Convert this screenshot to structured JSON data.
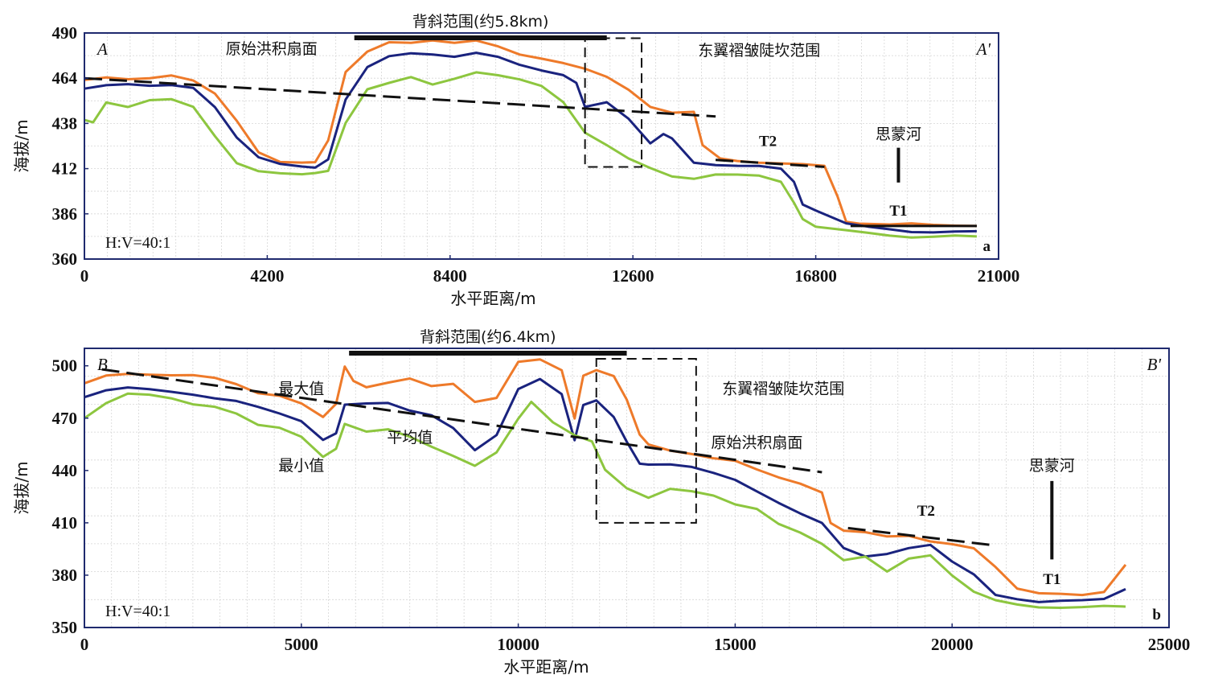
{
  "chart_data": [
    {
      "type": "line",
      "panel_label": "a",
      "title": "",
      "xlabel": "水平距离/m",
      "ylabel": "海拔/m",
      "xlim": [
        0,
        21000
      ],
      "ylim": [
        360,
        490
      ],
      "xticks": [
        0,
        4200,
        8400,
        12600,
        16800,
        21000
      ],
      "yticks": [
        360,
        386,
        412,
        438,
        464,
        490
      ],
      "grid": true,
      "start_label": "A",
      "end_label": "A'",
      "ratio": "H:V=40:1",
      "annotations": {
        "anticline": "背斜范围(约5.8km)",
        "east_wing": "东翼褶皱陡坎范围",
        "fan_surface": "原始洪积扇面",
        "river": "思蒙河",
        "t2": "T2",
        "t1": "T1"
      },
      "anticline_span": [
        6200,
        12000
      ],
      "dashed_box": {
        "x": [
          11500,
          12800
        ],
        "y": [
          413,
          487
        ]
      },
      "fan_line": [
        [
          0,
          464
        ],
        [
          14500,
          442
        ]
      ],
      "t2_line": [
        [
          14500,
          417
        ],
        [
          17000,
          413
        ]
      ],
      "t1_line": [
        [
          17600,
          379
        ],
        [
          20500,
          379
        ]
      ],
      "river_marker": {
        "x": 18700,
        "y": [
          404,
          424
        ]
      },
      "series": [
        {
          "name": "最大值",
          "color": "#ee7a2a",
          "x": [
            0,
            500,
            1000,
            1500,
            2000,
            2500,
            3000,
            3500,
            4000,
            4500,
            5000,
            5300,
            5600,
            6000,
            6500,
            7000,
            7500,
            8000,
            8500,
            9000,
            9500,
            10000,
            10500,
            11000,
            11500,
            12000,
            12500,
            13000,
            13500,
            14000,
            14200,
            14600,
            15000,
            15500,
            16000,
            16500,
            17000,
            17300,
            17500,
            17800,
            18500,
            19000,
            19500,
            20000,
            20500
          ],
          "y": [
            463,
            465,
            464,
            464,
            465,
            462,
            455,
            440,
            422,
            416,
            415,
            415,
            428,
            468,
            480,
            485,
            484,
            485,
            484,
            486,
            483,
            478,
            475,
            472,
            469,
            465,
            458,
            448,
            444,
            444,
            425,
            418,
            417,
            416,
            415,
            414,
            413,
            396,
            382,
            381,
            380,
            380,
            379,
            379,
            379
          ]
        },
        {
          "name": "平均值",
          "color": "#1a237e",
          "x": [
            0,
            500,
            1000,
            1500,
            2000,
            2500,
            3000,
            3500,
            4000,
            4500,
            5000,
            5300,
            5600,
            6000,
            6500,
            7000,
            7500,
            8000,
            8500,
            9000,
            9500,
            10000,
            10500,
            11000,
            11300,
            11500,
            12000,
            12500,
            13000,
            13300,
            13500,
            14000,
            14500,
            15000,
            15500,
            16000,
            16300,
            16500,
            16800,
            17500,
            18000,
            18500,
            19000,
            19500,
            20000,
            20500
          ],
          "y": [
            458,
            460,
            460,
            459,
            460,
            459,
            448,
            430,
            418,
            414,
            413,
            413,
            418,
            452,
            470,
            476,
            478,
            478,
            477,
            479,
            476,
            471,
            468,
            466,
            462,
            448,
            450,
            440,
            426,
            432,
            430,
            416,
            414,
            413,
            413,
            412,
            405,
            392,
            388,
            380,
            378,
            377,
            376,
            376,
            376,
            376
          ]
        },
        {
          "name": "最小值",
          "color": "#8dc63f",
          "x": [
            0,
            200,
            500,
            1000,
            1500,
            2000,
            2500,
            3000,
            3500,
            4000,
            4500,
            5000,
            5300,
            5600,
            6000,
            6500,
            7000,
            7500,
            8000,
            8500,
            9000,
            9500,
            10000,
            10500,
            11000,
            11500,
            12000,
            12500,
            13000,
            13500,
            14000,
            14500,
            15000,
            15500,
            16000,
            16300,
            16500,
            16800,
            17500,
            18000,
            18500,
            19000,
            19500,
            20000,
            20500
          ],
          "y": [
            440,
            438,
            450,
            448,
            452,
            452,
            447,
            430,
            415,
            411,
            410,
            409,
            409,
            410,
            438,
            458,
            462,
            465,
            460,
            463,
            467,
            466,
            464,
            460,
            450,
            432,
            425,
            418,
            413,
            408,
            406,
            408,
            408,
            408,
            405,
            393,
            383,
            378,
            376,
            375,
            374,
            373,
            373,
            373,
            373
          ]
        }
      ]
    },
    {
      "type": "line",
      "panel_label": "b",
      "title": "",
      "xlabel": "水平距离/m",
      "ylabel": "海拔/m",
      "xlim": [
        0,
        25000
      ],
      "ylim": [
        350,
        510
      ],
      "xticks": [
        0,
        5000,
        10000,
        15000,
        20000,
        25000
      ],
      "yticks": [
        350,
        380,
        410,
        440,
        470,
        500
      ],
      "grid": true,
      "start_label": "B",
      "end_label": "B'",
      "ratio": "H:V=40:1",
      "annotations": {
        "anticline": "背斜范围(约6.4km)",
        "east_wing": "东翼褶皱陡坎范围",
        "fan_surface": "原始洪积扇面",
        "max_label": "最大值",
        "mean_label": "平均值",
        "min_label": "最小值",
        "river": "思蒙河",
        "t2": "T2",
        "t1": "T1"
      },
      "anticline_span": [
        6100,
        12500
      ],
      "dashed_box": {
        "x": [
          11800,
          14100
        ],
        "y": [
          410,
          504
        ]
      },
      "fan_line": [
        [
          400,
          498
        ],
        [
          17000,
          439
        ]
      ],
      "t2_line": [
        [
          17600,
          407
        ],
        [
          21000,
          397
        ]
      ],
      "river_marker": {
        "x": 22300,
        "y": [
          389,
          434
        ]
      },
      "series": [
        {
          "name": "最大值",
          "color": "#ee7a2a",
          "x": [
            0,
            500,
            1000,
            1500,
            2000,
            2500,
            3000,
            3500,
            4000,
            4500,
            5000,
            5500,
            5800,
            6000,
            6200,
            6500,
            7000,
            7500,
            8000,
            8500,
            9000,
            9500,
            10000,
            10500,
            11000,
            11300,
            11500,
            11800,
            12200,
            12500,
            12800,
            13000,
            13500,
            14000,
            14500,
            15000,
            15500,
            16000,
            16500,
            17000,
            17200,
            17500,
            18000,
            18500,
            19000,
            19500,
            20000,
            20500,
            21000,
            21500,
            22000,
            22500,
            23000,
            23500,
            24000
          ],
          "y": [
            490,
            495,
            496,
            495,
            494,
            494,
            493,
            490,
            485,
            483,
            478,
            470,
            478,
            500,
            492,
            488,
            490,
            492,
            488,
            490,
            480,
            482,
            502,
            503,
            497,
            470,
            495,
            498,
            494,
            480,
            460,
            455,
            452,
            450,
            447,
            445,
            440,
            436,
            433,
            428,
            410,
            405,
            404,
            402,
            403,
            400,
            398,
            395,
            384,
            372,
            370,
            370,
            369,
            370,
            386
          ]
        },
        {
          "name": "平均值",
          "color": "#1a237e",
          "x": [
            0,
            500,
            1000,
            1500,
            2000,
            2500,
            3000,
            3500,
            4000,
            4500,
            5000,
            5500,
            5800,
            6000,
            6500,
            7000,
            7500,
            8000,
            8500,
            9000,
            9500,
            10000,
            10500,
            11000,
            11300,
            11500,
            11800,
            12200,
            12500,
            12800,
            13000,
            13500,
            14000,
            14500,
            15000,
            15500,
            16000,
            16500,
            17000,
            17500,
            18000,
            18500,
            19000,
            19500,
            20000,
            20500,
            21000,
            21500,
            22000,
            22500,
            23000,
            23500,
            24000
          ],
          "y": [
            482,
            486,
            487,
            486,
            485,
            484,
            482,
            480,
            476,
            472,
            468,
            458,
            462,
            478,
            478,
            478,
            474,
            472,
            465,
            452,
            460,
            486,
            492,
            484,
            458,
            478,
            480,
            470,
            456,
            444,
            444,
            444,
            442,
            438,
            434,
            428,
            422,
            416,
            410,
            395,
            390,
            392,
            396,
            398,
            388,
            380,
            368,
            366,
            365,
            366,
            366,
            366,
            372
          ]
        },
        {
          "name": "最小值",
          "color": "#8dc63f",
          "x": [
            0,
            500,
            1000,
            1500,
            2000,
            2500,
            3000,
            3500,
            4000,
            4500,
            5000,
            5500,
            5800,
            6000,
            6500,
            7000,
            7500,
            8000,
            8500,
            9000,
            9500,
            10000,
            10300,
            10800,
            11300,
            11700,
            12000,
            12500,
            13000,
            13500,
            14000,
            14500,
            15000,
            15500,
            16000,
            16500,
            17000,
            17500,
            18000,
            18500,
            19000,
            19500,
            20000,
            20500,
            21000,
            21500,
            22000,
            22500,
            23000,
            23500,
            24000
          ],
          "y": [
            470,
            478,
            484,
            484,
            482,
            478,
            476,
            472,
            466,
            465,
            460,
            448,
            452,
            466,
            462,
            464,
            460,
            454,
            448,
            442,
            450,
            470,
            480,
            468,
            460,
            456,
            440,
            430,
            425,
            430,
            428,
            425,
            420,
            418,
            410,
            405,
            398,
            388,
            390,
            382,
            390,
            392,
            380,
            370,
            365,
            363,
            362,
            362,
            362,
            362,
            362
          ]
        }
      ]
    }
  ]
}
